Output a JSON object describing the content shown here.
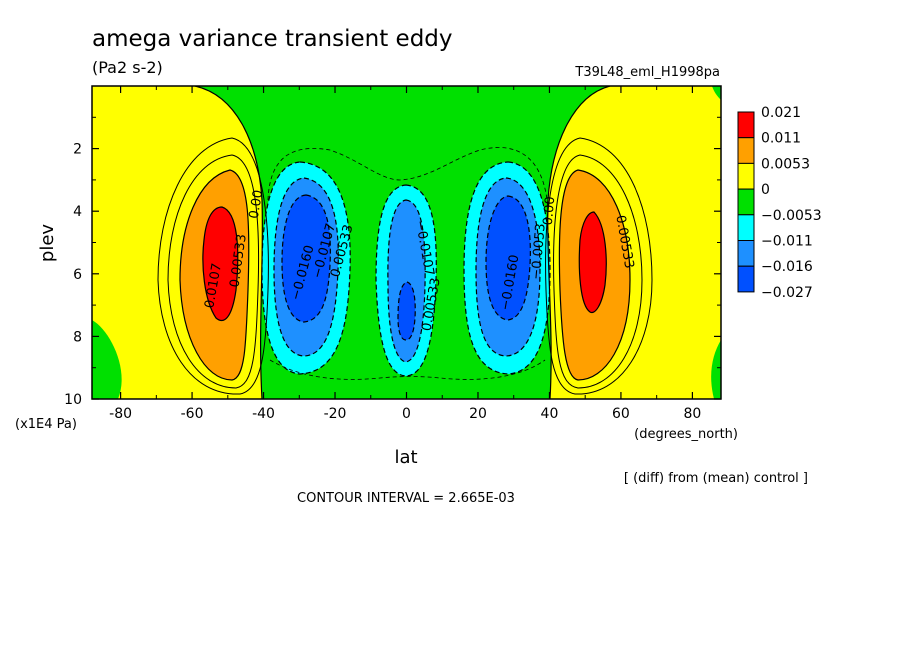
{
  "chart_data": {
    "type": "heatmap",
    "title": "amega variance transient eddy",
    "units": "(Pa2 s-2)",
    "run_label": "T39L48_eml_H1998pa",
    "xlabel": "lat",
    "x_units": "(degrees_north)",
    "ylabel": "plev",
    "y_units": "(x1E4 Pa)",
    "xlim": [
      -88,
      88
    ],
    "ylim": [
      10,
      0
    ],
    "x_ticks": [
      "-80",
      "-60",
      "-40",
      "-20",
      "0",
      "20",
      "40",
      "60",
      "80"
    ],
    "y_ticks": [
      "2",
      "4",
      "6",
      "8",
      "10"
    ],
    "colorbar": {
      "colors": [
        "#ff0000",
        "#ffa000",
        "#ffff00",
        "#00e000",
        "#00ffff",
        "#1e90ff",
        "#0050ff"
      ],
      "labels": [
        "0.021",
        "0.011",
        "0.0053",
        "0",
        "−0.0053",
        "−0.011",
        "−0.016",
        "−0.027"
      ]
    },
    "contour_labels": [
      {
        "text": "0.0107",
        "lat": -53,
        "plev": 6.4,
        "rot": -80
      },
      {
        "text": "0.00533",
        "lat": -46,
        "plev": 5.6,
        "rot": -82
      },
      {
        "text": "0.00",
        "lat": -41,
        "plev": 3.8,
        "rot": -80
      },
      {
        "text": "−0.0160",
        "lat": -28,
        "plev": 6.0,
        "rot": -75
      },
      {
        "text": "−0.0107",
        "lat": -22,
        "plev": 5.3,
        "rot": -75
      },
      {
        "text": "0.00533",
        "lat": -17,
        "plev": 5.3,
        "rot": -75
      },
      {
        "text": "−0.0107",
        "lat": 4,
        "plev": 5.2,
        "rot": 80
      },
      {
        "text": "0.00533",
        "lat": 8,
        "plev": 7.0,
        "rot": -80
      },
      {
        "text": "−0.0160",
        "lat": 30,
        "plev": 6.3,
        "rot": -80
      },
      {
        "text": "−0.0053",
        "lat": 38,
        "plev": 5.3,
        "rot": -85
      },
      {
        "text": "0.00",
        "lat": 41,
        "plev": 4.0,
        "rot": -85
      },
      {
        "text": "0.00533",
        "lat": 60,
        "plev": 5.0,
        "rot": 80
      }
    ],
    "footer_note": "[ (diff) from (mean) control ]",
    "contour_interval": "CONTOUR INTERVAL = 2.665E-03"
  }
}
